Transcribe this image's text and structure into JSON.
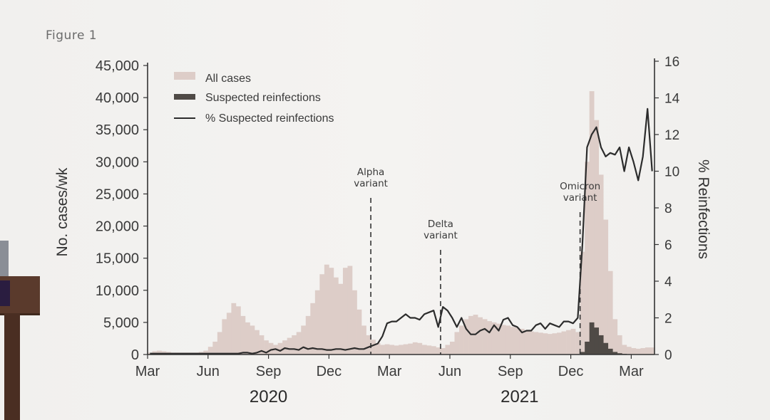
{
  "figure_label": "Figure 1",
  "colors": {
    "all_cases": "#ddcdc8",
    "suspected_reinfections": "#4f4a46",
    "pct_line": "#2c2c2c"
  },
  "chart_data": {
    "type": "bar",
    "title": "",
    "xlabel": "",
    "ylabel": "No. cases/wk",
    "y2label": "% Reinfections",
    "ylim": [
      0,
      45000
    ],
    "y2lim": [
      0,
      16
    ],
    "yticks": [
      "0",
      "5,000",
      "10,000",
      "15,000",
      "20,000",
      "25,000",
      "30,000",
      "35,000",
      "40,000",
      "45,000"
    ],
    "y2ticks": [
      "0",
      "2",
      "4",
      "6",
      "8",
      "10",
      "12",
      "14",
      "16"
    ],
    "xticks": [
      {
        "label": "Mar",
        "week": 0
      },
      {
        "label": "Jun",
        "week": 13
      },
      {
        "label": "Sep",
        "week": 26
      },
      {
        "label": "Dec",
        "week": 39
      },
      {
        "label": "Mar",
        "week": 52
      },
      {
        "label": "Jun",
        "week": 65
      },
      {
        "label": "Sep",
        "week": 78
      },
      {
        "label": "Dec",
        "week": 91
      },
      {
        "label": "Mar",
        "week": 104
      }
    ],
    "years": [
      {
        "label": "2020",
        "week": 26
      },
      {
        "label": "2021",
        "week": 80
      }
    ],
    "legend": {
      "placement": "top-left",
      "entries": [
        "All cases",
        "Suspected reinfections",
        "% Suspected reinfections"
      ]
    },
    "annotations": [
      {
        "lines": [
          "Alpha",
          "variant"
        ],
        "week": 48
      },
      {
        "lines": [
          "Delta",
          "variant"
        ],
        "week": 63
      },
      {
        "lines": [
          "Omicron",
          "variant"
        ],
        "week": 93
      }
    ],
    "series": [
      {
        "name": "All cases",
        "kind": "bar",
        "axis": "left",
        "values": [
          300,
          500,
          600,
          500,
          400,
          300,
          300,
          300,
          300,
          300,
          300,
          400,
          600,
          1200,
          2000,
          3500,
          5500,
          6500,
          8000,
          7500,
          6000,
          5000,
          4500,
          3800,
          3000,
          2200,
          1800,
          1500,
          1800,
          2200,
          2600,
          3000,
          3500,
          4500,
          6000,
          8000,
          10000,
          12500,
          14000,
          13500,
          12000,
          11000,
          13500,
          13800,
          10000,
          7000,
          4500,
          3000,
          2300,
          1800,
          1500,
          1600,
          1500,
          1400,
          1500,
          1600,
          1700,
          1900,
          1800,
          1500,
          1400,
          1300,
          1100,
          1000,
          1500,
          2000,
          3500,
          4500,
          5500,
          6000,
          6200,
          5800,
          5500,
          5200,
          5000,
          4800,
          4600,
          4500,
          4300,
          4200,
          4000,
          3800,
          3600,
          3500,
          3400,
          3300,
          3200,
          3300,
          3400,
          3600,
          3800,
          4000,
          3500,
          16000,
          30000,
          41000,
          36500,
          28000,
          21000,
          13000,
          5500,
          3000,
          1500,
          1200,
          1000,
          900,
          1000,
          1100,
          1100
        ],
        "style": "bar"
      },
      {
        "name": "Suspected reinfections",
        "kind": "bar",
        "axis": "left",
        "values": [
          0,
          0,
          0,
          0,
          0,
          0,
          0,
          0,
          0,
          0,
          0,
          0,
          0,
          0,
          0,
          0,
          0,
          0,
          0,
          0,
          0,
          0,
          0,
          0,
          0,
          0,
          0,
          0,
          0,
          0,
          0,
          0,
          0,
          0,
          0,
          0,
          0,
          0,
          0,
          0,
          0,
          0,
          0,
          0,
          0,
          0,
          0,
          0,
          0,
          0,
          0,
          0,
          0,
          0,
          0,
          0,
          0,
          0,
          0,
          0,
          0,
          0,
          0,
          0,
          0,
          0,
          0,
          0,
          0,
          0,
          0,
          0,
          0,
          0,
          0,
          0,
          0,
          0,
          0,
          0,
          0,
          0,
          0,
          0,
          0,
          0,
          0,
          0,
          0,
          0,
          0,
          0,
          0,
          400,
          2000,
          5000,
          4200,
          3000,
          1800,
          900,
          400,
          200,
          100,
          60,
          40,
          30,
          30,
          30,
          30
        ],
        "style": "bar"
      },
      {
        "name": "% Suspected reinfections",
        "kind": "line",
        "axis": "right",
        "values": [
          0.05,
          0.05,
          0.05,
          0.05,
          0.05,
          0.05,
          0.05,
          0.05,
          0.05,
          0.05,
          0.05,
          0.05,
          0.05,
          0.05,
          0.05,
          0.05,
          0.05,
          0.05,
          0.05,
          0.05,
          0.1,
          0.1,
          0.05,
          0.1,
          0.2,
          0.1,
          0.25,
          0.3,
          0.2,
          0.35,
          0.3,
          0.3,
          0.25,
          0.4,
          0.3,
          0.35,
          0.3,
          0.3,
          0.25,
          0.25,
          0.3,
          0.3,
          0.25,
          0.3,
          0.35,
          0.3,
          0.3,
          0.4,
          0.5,
          0.6,
          1.0,
          1.7,
          1.8,
          1.8,
          2.0,
          2.2,
          2.0,
          2.0,
          1.9,
          2.2,
          2.3,
          2.4,
          1.5,
          2.6,
          2.4,
          2.0,
          1.5,
          2.0,
          1.4,
          1.1,
          1.1,
          1.3,
          1.4,
          1.2,
          1.6,
          1.3,
          1.9,
          2.0,
          1.6,
          1.5,
          1.2,
          1.3,
          1.3,
          1.6,
          1.7,
          1.4,
          1.7,
          1.6,
          1.5,
          1.8,
          1.8,
          1.7,
          2.0,
          6.0,
          11.3,
          12.0,
          12.4,
          11.3,
          10.8,
          11.0,
          10.9,
          11.3,
          10.0,
          11.3,
          10.5,
          9.5,
          10.8,
          13.4,
          10.0
        ]
      }
    ]
  }
}
